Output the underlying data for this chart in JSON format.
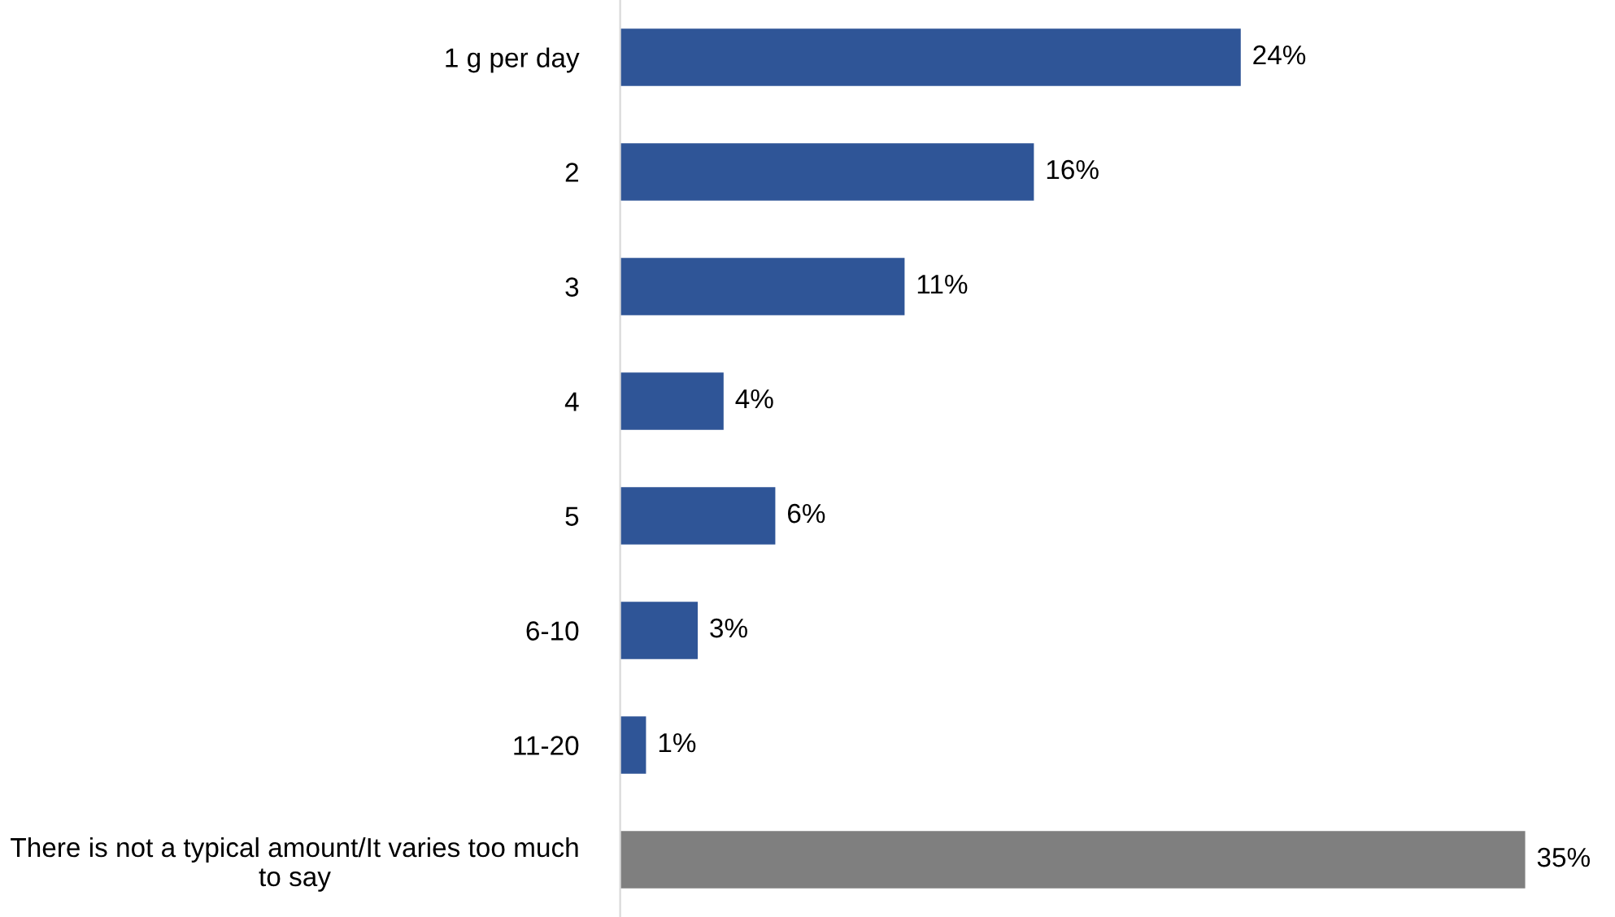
{
  "chart_data": {
    "type": "bar",
    "orientation": "horizontal",
    "categories": [
      "1 g per day",
      "2",
      "3",
      "4",
      "5",
      "6-10",
      "11-20",
      "There is not a typical amount/It varies too much to say"
    ],
    "values": [
      24,
      16,
      11,
      4,
      6,
      3,
      1,
      35
    ],
    "value_labels": [
      "24%",
      "16%",
      "11%",
      "4%",
      "6%",
      "3%",
      "1%",
      "35%"
    ],
    "colors": [
      "#2f5597",
      "#2f5597",
      "#2f5597",
      "#2f5597",
      "#2f5597",
      "#2f5597",
      "#2f5597",
      "#7f7f7f"
    ],
    "grid": false,
    "legend": false
  }
}
